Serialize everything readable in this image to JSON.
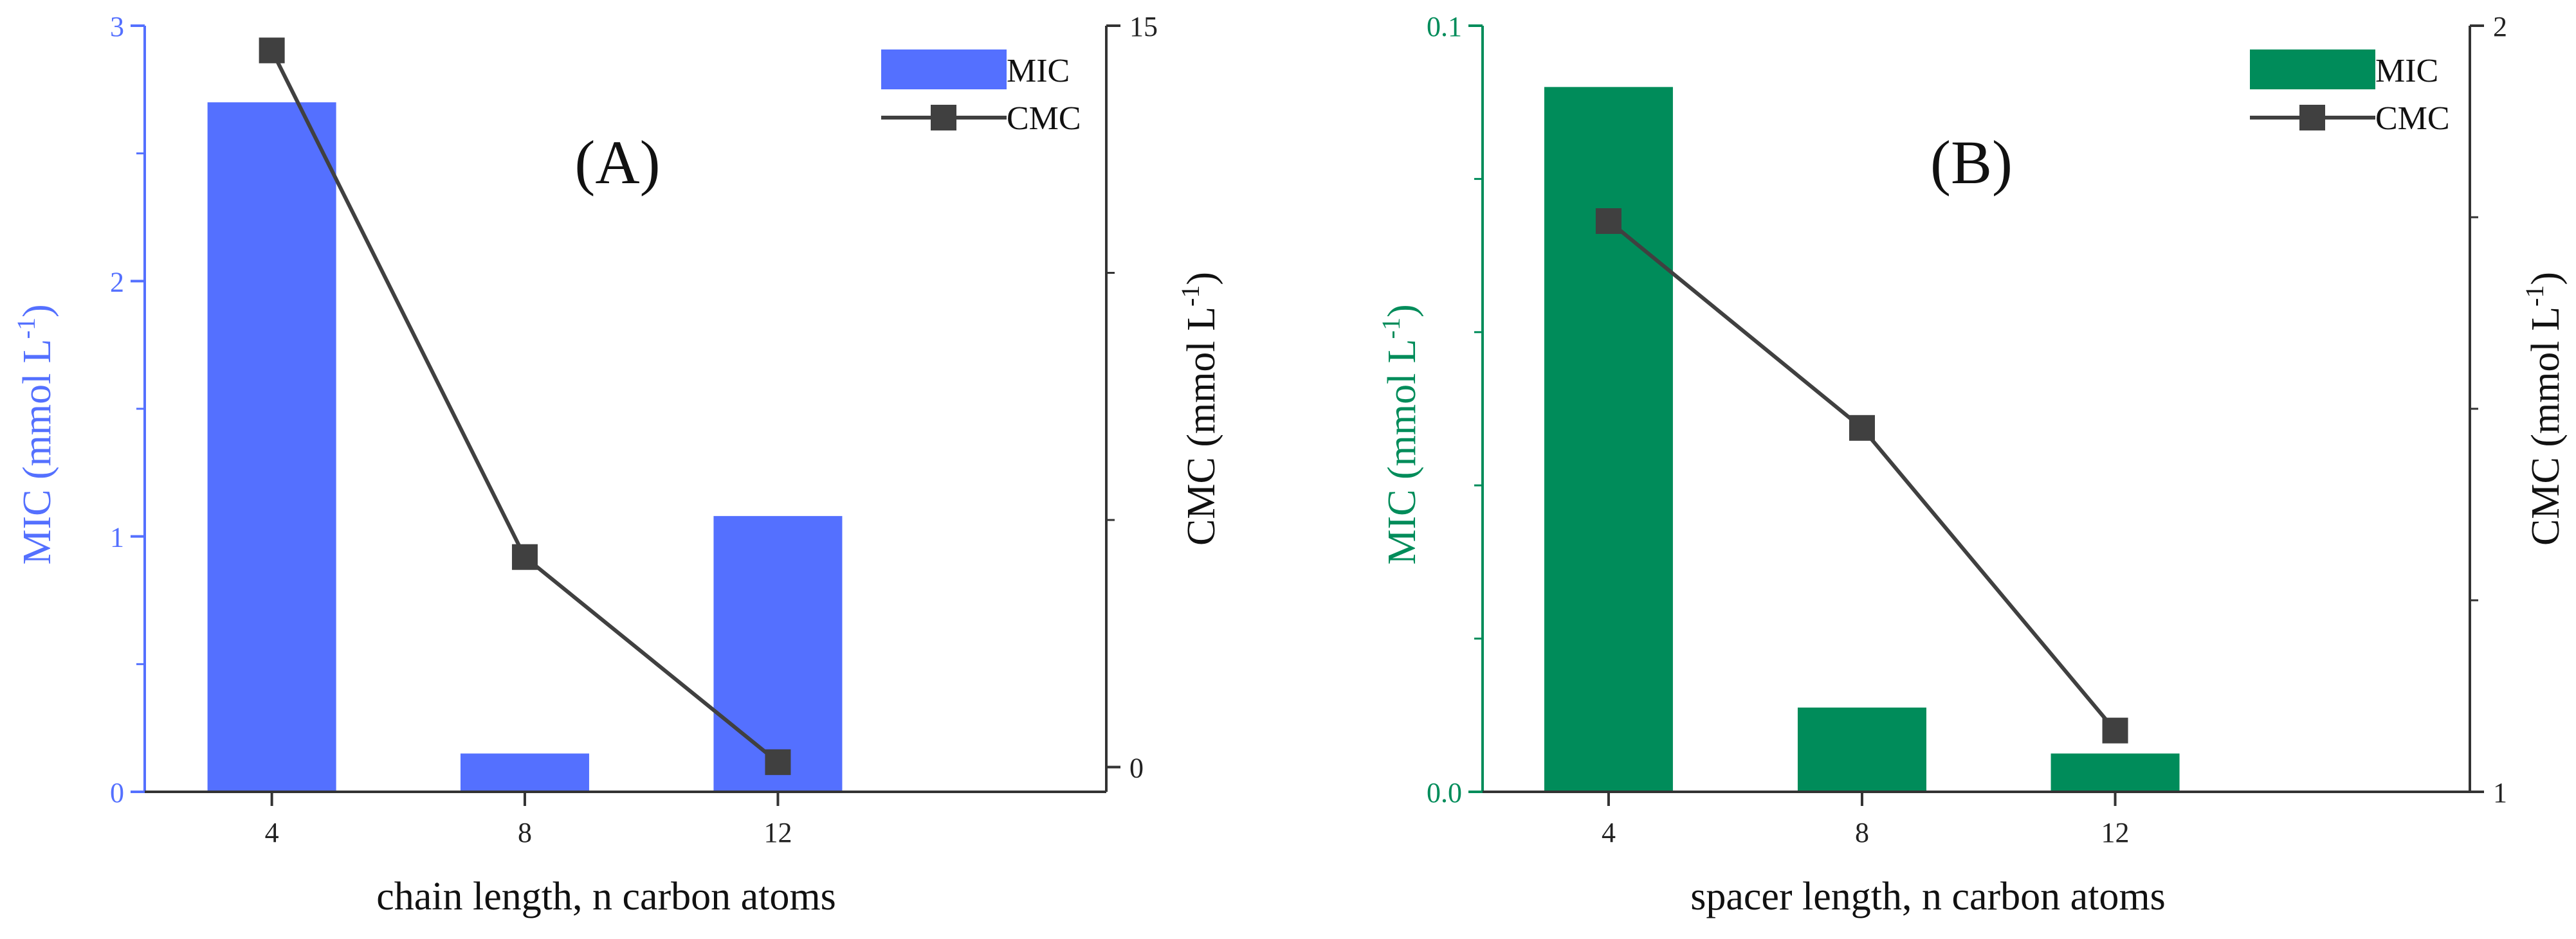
{
  "chart_data": [
    {
      "type": "bar",
      "panel_label": "(A)",
      "categories": [
        "4",
        "8",
        "12"
      ],
      "xlabel": "chain length, n carbon atoms",
      "ylabel_main": "MIC (mmol L",
      "ylabel_sup": "-1",
      "ylabel_tail": ")",
      "y2label_main": "CMC (mmol L",
      "y2label_sup": "-1",
      "y2label_tail": ")",
      "ylim": [
        0,
        3
      ],
      "yticks": [
        "0",
        "1",
        "2",
        "3"
      ],
      "y2lim": [
        -0.5,
        15
      ],
      "y2ticks": [
        "0",
        "15"
      ],
      "y2_minor_ticks": [
        5,
        10
      ],
      "colors": {
        "bar": "#5470ff",
        "axis_left": "#5470ff",
        "line": "#404040",
        "marker": "#404040"
      },
      "legend": [
        "MIC",
        "CMC"
      ],
      "series": [
        {
          "name": "MIC",
          "kind": "bar",
          "axis": "left",
          "values": [
            2.7,
            0.15,
            1.08
          ]
        },
        {
          "name": "CMC",
          "kind": "line",
          "axis": "right",
          "values": [
            14.5,
            4.25,
            0.1
          ]
        }
      ]
    },
    {
      "type": "bar",
      "panel_label": "(B)",
      "categories": [
        "4",
        "8",
        "12"
      ],
      "xlabel": "spacer length, n carbon atoms",
      "ylabel_main": "MIC (mmol L",
      "ylabel_sup": "-1",
      "ylabel_tail": ")",
      "y2label_main": "CMC (mmol L",
      "y2label_sup": "-1",
      "y2label_tail": ")",
      "ylim": [
        0,
        0.1
      ],
      "yticks": [
        "0.0",
        "0.1"
      ],
      "y_minor_ticks": [
        0.02,
        0.04,
        0.06,
        0.08
      ],
      "y2lim": [
        1,
        2
      ],
      "y2ticks": [
        "1",
        "2"
      ],
      "y2_minor_ticks": [
        1.25,
        1.5,
        1.75
      ],
      "colors": {
        "bar": "#008c5a",
        "axis_left": "#008c5a",
        "line": "#404040",
        "marker": "#404040"
      },
      "legend": [
        "MIC",
        "CMC"
      ],
      "series": [
        {
          "name": "MIC",
          "kind": "bar",
          "axis": "left",
          "values": [
            0.092,
            0.011,
            0.005
          ]
        },
        {
          "name": "CMC",
          "kind": "line",
          "axis": "right",
          "values": [
            1.745,
            1.475,
            1.08
          ]
        }
      ]
    }
  ]
}
